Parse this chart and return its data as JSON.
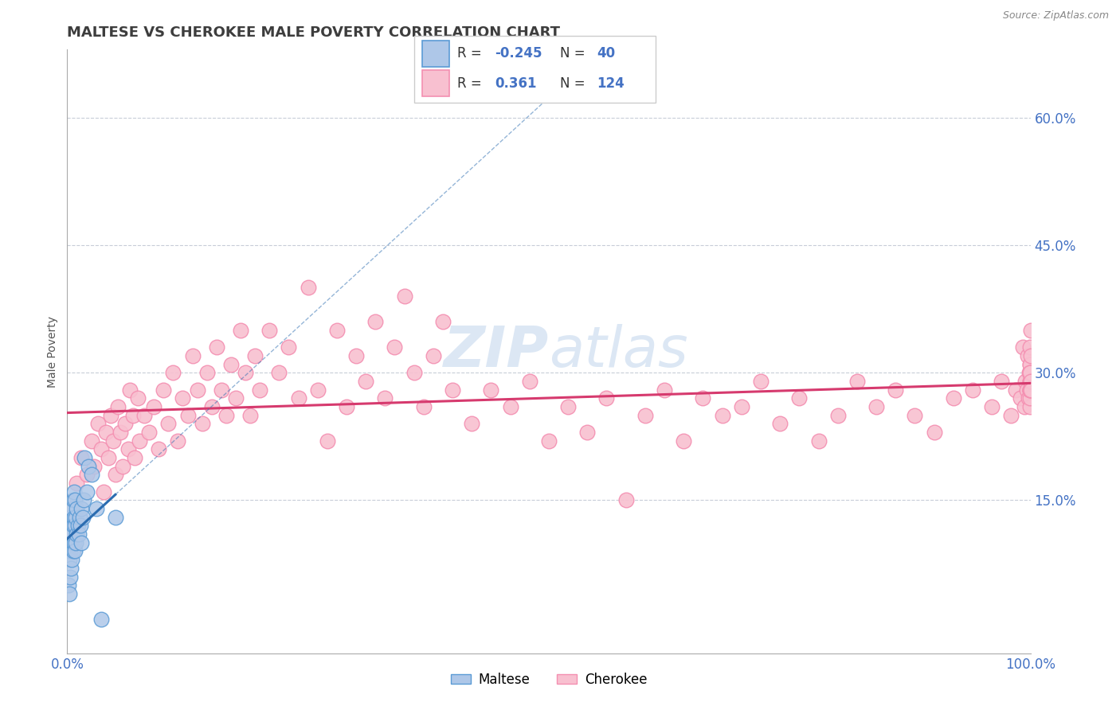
{
  "title": "MALTESE VS CHEROKEE MALE POVERTY CORRELATION CHART",
  "source": "Source: ZipAtlas.com",
  "ylabel": "Male Poverty",
  "xlim": [
    0.0,
    1.0
  ],
  "ylim": [
    -0.03,
    0.68
  ],
  "title_color": "#3d3d3d",
  "title_fontsize": 13,
  "watermark": "ZIPatlas",
  "maltese_dot_color": "#5b9bd5",
  "maltese_fill": "#aec7e8",
  "cherokee_dot_color": "#f48fb1",
  "cherokee_fill": "#f8c0d0",
  "maltese_line_color": "#2b6cb0",
  "cherokee_line_color": "#d63a6e",
  "maltese_R": -0.245,
  "maltese_N": 40,
  "cherokee_R": 0.361,
  "cherokee_N": 124,
  "legend_label1": "Maltese",
  "legend_label2": "Cherokee",
  "y_tick_labels": [
    "15.0%",
    "30.0%",
    "45.0%",
    "60.0%"
  ],
  "y_tick_values": [
    0.15,
    0.3,
    0.45,
    0.6
  ],
  "tick_label_color": "#4472c4",
  "grid_color": "#c8cdd8",
  "maltese_x": [
    0.001,
    0.002,
    0.002,
    0.003,
    0.003,
    0.003,
    0.004,
    0.004,
    0.004,
    0.005,
    0.005,
    0.005,
    0.006,
    0.006,
    0.006,
    0.007,
    0.007,
    0.007,
    0.008,
    0.008,
    0.008,
    0.009,
    0.009,
    0.01,
    0.01,
    0.011,
    0.012,
    0.013,
    0.014,
    0.015,
    0.015,
    0.016,
    0.017,
    0.018,
    0.02,
    0.022,
    0.025,
    0.03,
    0.035,
    0.05
  ],
  "maltese_y": [
    0.05,
    0.08,
    0.04,
    0.06,
    0.09,
    0.11,
    0.07,
    0.1,
    0.13,
    0.08,
    0.11,
    0.14,
    0.09,
    0.12,
    0.15,
    0.1,
    0.13,
    0.16,
    0.09,
    0.12,
    0.15,
    0.1,
    0.13,
    0.11,
    0.14,
    0.12,
    0.11,
    0.13,
    0.12,
    0.14,
    0.1,
    0.13,
    0.15,
    0.2,
    0.16,
    0.19,
    0.18,
    0.14,
    0.01,
    0.13
  ],
  "cherokee_x": [
    0.01,
    0.015,
    0.02,
    0.025,
    0.028,
    0.032,
    0.035,
    0.038,
    0.04,
    0.043,
    0.045,
    0.048,
    0.05,
    0.053,
    0.055,
    0.058,
    0.06,
    0.063,
    0.065,
    0.068,
    0.07,
    0.073,
    0.075,
    0.08,
    0.085,
    0.09,
    0.095,
    0.1,
    0.105,
    0.11,
    0.115,
    0.12,
    0.125,
    0.13,
    0.135,
    0.14,
    0.145,
    0.15,
    0.155,
    0.16,
    0.165,
    0.17,
    0.175,
    0.18,
    0.185,
    0.19,
    0.195,
    0.2,
    0.21,
    0.22,
    0.23,
    0.24,
    0.25,
    0.26,
    0.27,
    0.28,
    0.29,
    0.3,
    0.31,
    0.32,
    0.33,
    0.34,
    0.35,
    0.36,
    0.37,
    0.38,
    0.39,
    0.4,
    0.42,
    0.44,
    0.46,
    0.48,
    0.5,
    0.52,
    0.54,
    0.56,
    0.58,
    0.6,
    0.62,
    0.64,
    0.66,
    0.68,
    0.7,
    0.72,
    0.74,
    0.76,
    0.78,
    0.8,
    0.82,
    0.84,
    0.86,
    0.88,
    0.9,
    0.92,
    0.94,
    0.96,
    0.97,
    0.98,
    0.985,
    0.99,
    0.992,
    0.994,
    0.995,
    0.996,
    0.997,
    0.998,
    0.999,
    0.9992,
    0.9994,
    0.9996,
    0.9997,
    0.9998,
    0.99985,
    0.9999,
    0.99992,
    0.99994,
    0.99995,
    0.99996,
    0.99997,
    0.99998,
    0.999985,
    0.99999,
    0.999993,
    0.999995
  ],
  "cherokee_y": [
    0.17,
    0.2,
    0.18,
    0.22,
    0.19,
    0.24,
    0.21,
    0.16,
    0.23,
    0.2,
    0.25,
    0.22,
    0.18,
    0.26,
    0.23,
    0.19,
    0.24,
    0.21,
    0.28,
    0.25,
    0.2,
    0.27,
    0.22,
    0.25,
    0.23,
    0.26,
    0.21,
    0.28,
    0.24,
    0.3,
    0.22,
    0.27,
    0.25,
    0.32,
    0.28,
    0.24,
    0.3,
    0.26,
    0.33,
    0.28,
    0.25,
    0.31,
    0.27,
    0.35,
    0.3,
    0.25,
    0.32,
    0.28,
    0.35,
    0.3,
    0.33,
    0.27,
    0.4,
    0.28,
    0.22,
    0.35,
    0.26,
    0.32,
    0.29,
    0.36,
    0.27,
    0.33,
    0.39,
    0.3,
    0.26,
    0.32,
    0.36,
    0.28,
    0.24,
    0.28,
    0.26,
    0.29,
    0.22,
    0.26,
    0.23,
    0.27,
    0.15,
    0.25,
    0.28,
    0.22,
    0.27,
    0.25,
    0.26,
    0.29,
    0.24,
    0.27,
    0.22,
    0.25,
    0.29,
    0.26,
    0.28,
    0.25,
    0.23,
    0.27,
    0.28,
    0.26,
    0.29,
    0.25,
    0.28,
    0.27,
    0.33,
    0.26,
    0.29,
    0.28,
    0.32,
    0.27,
    0.3,
    0.29,
    0.26,
    0.28,
    0.31,
    0.28,
    0.31,
    0.29,
    0.27,
    0.3,
    0.28,
    0.33,
    0.3,
    0.28,
    0.35,
    0.29,
    0.32,
    0.28
  ]
}
